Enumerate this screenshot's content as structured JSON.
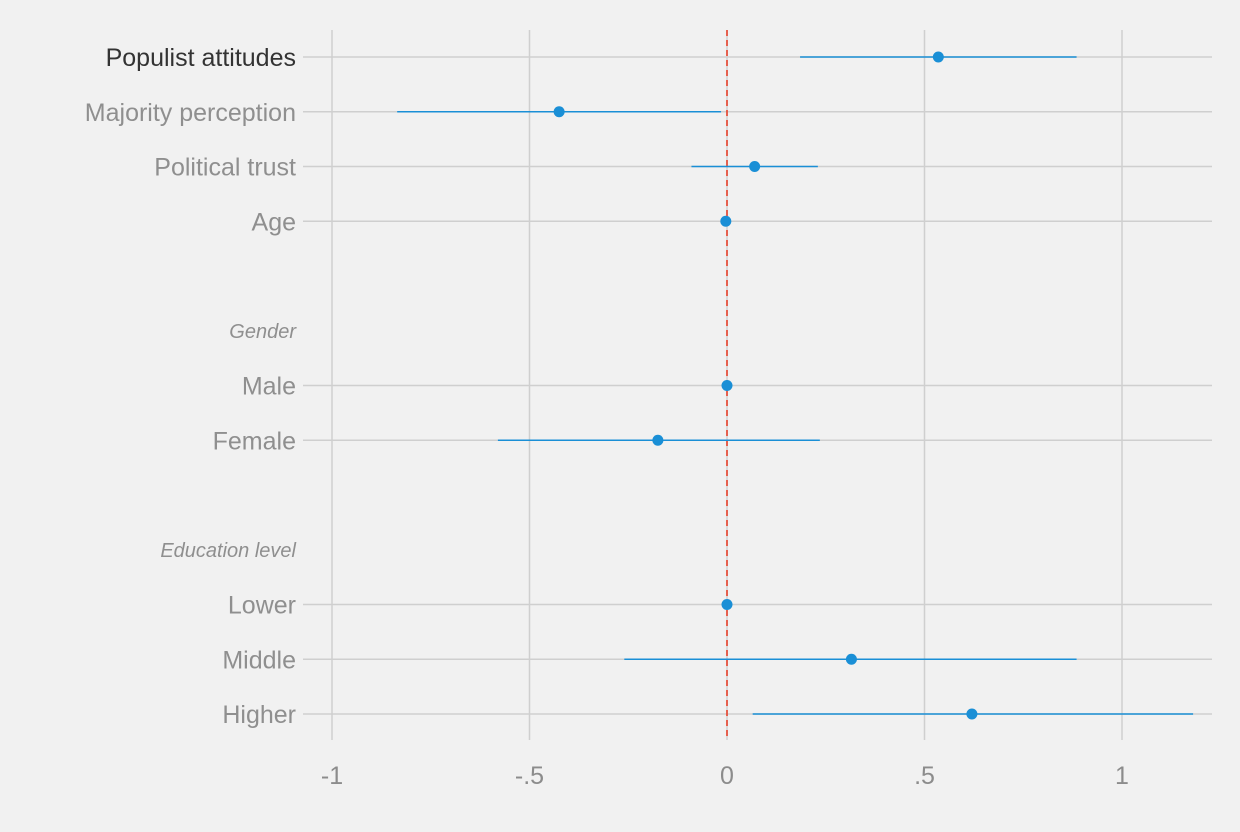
{
  "chart_data": {
    "type": "coefficient_plot",
    "title": "",
    "xlabel": "",
    "ylabel": "",
    "xlim": [
      -1,
      1.2
    ],
    "grid": true,
    "x_ticks": [
      {
        "value": -1,
        "label": "-1"
      },
      {
        "value": -0.5,
        "label": "-.5"
      },
      {
        "value": 0,
        "label": "0"
      },
      {
        "value": 0.5,
        "label": ".5"
      },
      {
        "value": 1,
        "label": "1"
      }
    ],
    "reference_line": {
      "value": 0,
      "color": "#e8402a",
      "style": "dashed"
    },
    "marker_color": "#1a8fd6",
    "rows": [
      {
        "kind": "coef",
        "label": "Populist attitudes",
        "estimate": 0.535,
        "ci_low": 0.185,
        "ci_high": 0.885,
        "highlight": true
      },
      {
        "kind": "coef",
        "label": "Majority perception",
        "estimate": -0.425,
        "ci_low": -0.835,
        "ci_high": -0.015
      },
      {
        "kind": "coef",
        "label": "Political trust",
        "estimate": 0.07,
        "ci_low": -0.09,
        "ci_high": 0.23
      },
      {
        "kind": "coef",
        "label": "Age",
        "estimate": -0.003,
        "ci_low": -0.006,
        "ci_high": 0.0
      },
      {
        "kind": "blank"
      },
      {
        "kind": "header",
        "label": "Gender"
      },
      {
        "kind": "coef",
        "label": "Male",
        "estimate": 0.0,
        "ci_low": 0.0,
        "ci_high": 0.0
      },
      {
        "kind": "coef",
        "label": "Female",
        "estimate": -0.175,
        "ci_low": -0.58,
        "ci_high": 0.235
      },
      {
        "kind": "blank"
      },
      {
        "kind": "header",
        "label": "Education level"
      },
      {
        "kind": "coef",
        "label": "Lower",
        "estimate": 0.0,
        "ci_low": 0.0,
        "ci_high": 0.0
      },
      {
        "kind": "coef",
        "label": "Middle",
        "estimate": 0.315,
        "ci_low": -0.26,
        "ci_high": 0.885
      },
      {
        "kind": "coef",
        "label": "Higher",
        "estimate": 0.62,
        "ci_low": 0.065,
        "ci_high": 1.18
      }
    ]
  }
}
